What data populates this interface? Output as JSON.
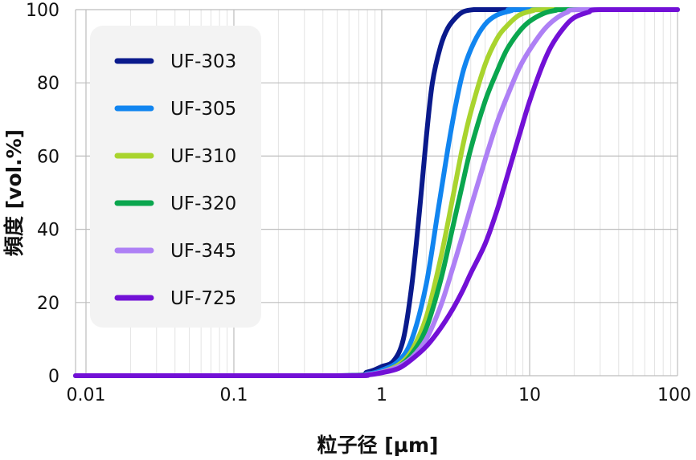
{
  "chart_data": {
    "type": "line",
    "xlabel": "粒子径 [µm]",
    "ylabel": "頻度 [vol.%]",
    "xscale": "log",
    "xlim": [
      0.0085,
      100
    ],
    "ylim": [
      0,
      100
    ],
    "x_ticks": [
      0.01,
      0.1,
      1,
      10,
      100
    ],
    "x_tick_labels": [
      "0.01",
      "0.1",
      "1",
      "10",
      "100"
    ],
    "y_ticks": [
      0,
      20,
      40,
      60,
      80,
      100
    ],
    "y_tick_labels": [
      "0",
      "20",
      "40",
      "60",
      "80",
      "100"
    ],
    "grid": true,
    "legend_position": "top-left",
    "series": [
      {
        "name": "UF-303",
        "color": "#0a1a8c",
        "x": [
          0.0085,
          0.5,
          0.8,
          1.0,
          1.2,
          1.4,
          1.6,
          1.8,
          2.0,
          2.2,
          2.5,
          2.8,
          3.2,
          3.6,
          4.2,
          5.0,
          6.0,
          100
        ],
        "y": [
          0,
          0,
          1,
          2.5,
          4,
          10,
          25,
          45,
          65,
          80,
          90,
          95,
          98,
          99.5,
          100,
          100,
          100,
          100
        ]
      },
      {
        "name": "UF-305",
        "color": "#1185f0",
        "x": [
          0.0085,
          0.5,
          0.8,
          1.0,
          1.3,
          1.6,
          2.0,
          2.4,
          2.8,
          3.2,
          3.6,
          4.2,
          5.0,
          6.0,
          7.5,
          9.0,
          100
        ],
        "y": [
          0,
          0,
          0.5,
          1.5,
          4,
          10,
          25,
          45,
          62,
          75,
          84,
          91,
          96,
          98.5,
          99.7,
          100,
          100
        ]
      },
      {
        "name": "UF-310",
        "color": "#a9d42e",
        "x": [
          0.0085,
          0.5,
          0.8,
          1.0,
          1.3,
          1.6,
          2.0,
          2.5,
          3.0,
          3.5,
          4.0,
          5.0,
          6.0,
          7.0,
          8.5,
          10.5,
          13,
          100
        ],
        "y": [
          0,
          0,
          0.3,
          1,
          3,
          7,
          16,
          32,
          48,
          62,
          72,
          85,
          92,
          95.5,
          98.5,
          99.7,
          100,
          100
        ]
      },
      {
        "name": "UF-320",
        "color": "#0aa64e",
        "x": [
          0.0085,
          0.5,
          0.8,
          1.0,
          1.3,
          1.6,
          2.0,
          2.5,
          3.0,
          3.5,
          4.0,
          5.0,
          6.0,
          7.0,
          8.5,
          10.0,
          12.5,
          15,
          18,
          100
        ],
        "y": [
          0,
          0,
          0.3,
          1,
          2.5,
          6,
          13,
          26,
          40,
          52,
          62,
          75,
          83,
          89,
          94,
          96.8,
          99,
          99.8,
          100,
          100
        ]
      },
      {
        "name": "UF-345",
        "color": "#ae80f5",
        "x": [
          0.0085,
          0.5,
          0.8,
          1.0,
          1.3,
          1.6,
          2.0,
          2.5,
          3.0,
          3.5,
          4.0,
          5.0,
          6.0,
          7.0,
          8.5,
          10.0,
          12.5,
          15,
          18,
          22,
          100
        ],
        "y": [
          0,
          0,
          0.3,
          1,
          2.5,
          5,
          10,
          19,
          29,
          38,
          46,
          59,
          69,
          76,
          84,
          89,
          94.5,
          97.5,
          99.3,
          100,
          100
        ]
      },
      {
        "name": "UF-725",
        "color": "#7210d6",
        "x": [
          0.0085,
          0.5,
          0.8,
          1.0,
          1.3,
          1.6,
          2.0,
          2.5,
          3.0,
          3.5,
          4.0,
          5.0,
          6.0,
          7.0,
          8.0,
          9.0,
          10.0,
          12.0,
          14.0,
          17.0,
          20.0,
          25.0,
          30.0,
          100
        ],
        "y": [
          0,
          0,
          0.2,
          0.8,
          2,
          4.5,
          8,
          13,
          18,
          23,
          28,
          36,
          45,
          54,
          62,
          69,
          75,
          84,
          90,
          95,
          97.8,
          99.3,
          100,
          100
        ]
      }
    ]
  }
}
